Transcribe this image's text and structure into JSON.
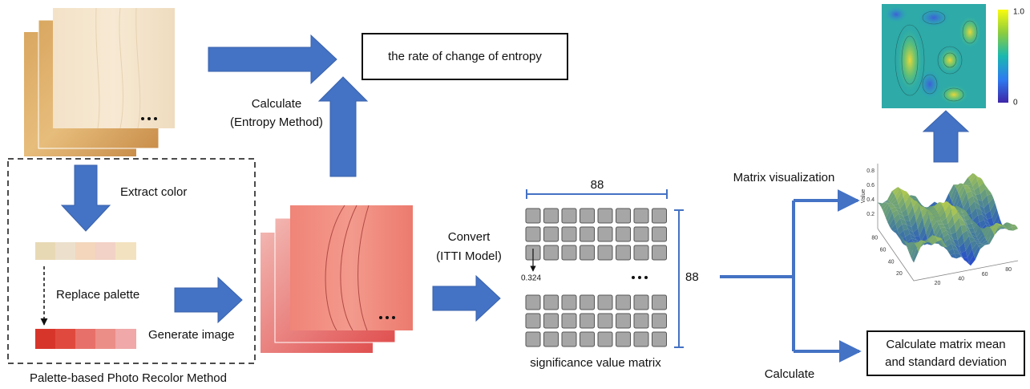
{
  "entropy": {
    "result": "the rate of change of entropy",
    "method_line1": "Calculate",
    "method_line2": "(Entropy Method)"
  },
  "recolor": {
    "extract": "Extract color",
    "replace": "Replace palette",
    "generate": "Generate image",
    "caption": "Palette-based Photo Recolor Method"
  },
  "convert": {
    "line1": "Convert",
    "line2": "(ITTI Model)"
  },
  "matrix": {
    "width_label": "88",
    "height_label": "88",
    "sample_value": "0.324",
    "caption": "significance value matrix"
  },
  "visualization": {
    "label": "Matrix visualization",
    "colorbar_max": "1.0",
    "colorbar_min": "0",
    "surface": {
      "z_label": "Value",
      "z_ticks": [
        "0.8",
        "0.6",
        "0.4",
        "0.2"
      ],
      "x_ticks": [
        "20",
        "40",
        "60",
        "80"
      ],
      "y_ticks": [
        "80",
        "60",
        "40",
        "20"
      ]
    }
  },
  "statistics": {
    "label": "Calculate",
    "box_line1": "Calculate matrix mean",
    "box_line2": "and standard deviation"
  }
}
